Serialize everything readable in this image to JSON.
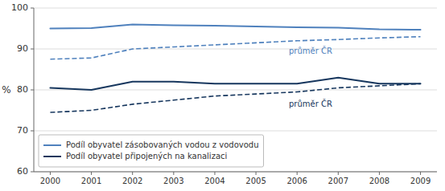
{
  "chart_data": {
    "type": "line",
    "x": [
      2000,
      2001,
      2002,
      2003,
      2004,
      2005,
      2006,
      2007,
      2008,
      2009
    ],
    "xlim": [
      1999.6,
      2009.4
    ],
    "xticks": [
      2000,
      2001,
      2002,
      2003,
      2004,
      2005,
      2006,
      2007,
      2008,
      2009
    ],
    "ylim": [
      60,
      100
    ],
    "yticks": [
      60,
      70,
      80,
      90,
      100
    ],
    "ylabel": "%",
    "grid": "y",
    "legend": "lower left",
    "series": [
      {
        "name": "Podíl obyvatel zásobovaných vodou z vodovodu",
        "color": "#4F81BD",
        "line_style": "solid",
        "values": [
          95.0,
          95.1,
          96.0,
          95.8,
          95.7,
          95.5,
          95.3,
          95.2,
          94.8,
          94.7
        ]
      },
      {
        "color": "#4F81BD",
        "line_style": "dashed",
        "values": [
          87.5,
          87.8,
          90.0,
          90.5,
          91.0,
          91.5,
          92.0,
          92.3,
          92.7,
          93.0
        ]
      },
      {
        "name": "Podíl obyvatel připojených na kanalizaci",
        "color": "#17375E",
        "line_style": "solid",
        "values": [
          80.5,
          80.0,
          82.0,
          82.0,
          81.5,
          81.5,
          81.5,
          83.0,
          81.5,
          81.5
        ]
      },
      {
        "color": "#17375E",
        "line_style": "dashed",
        "values": [
          74.5,
          75.0,
          76.5,
          77.5,
          78.5,
          79.0,
          79.5,
          80.5,
          81.0,
          81.5
        ]
      }
    ],
    "annotations": [
      {
        "text": "průměr ČR",
        "x": 2005.8,
        "y": 89.5,
        "color": "#4F81BD"
      },
      {
        "text": "průměr ČR",
        "x": 2005.8,
        "y": 76.5,
        "color": "#17375E"
      }
    ]
  }
}
